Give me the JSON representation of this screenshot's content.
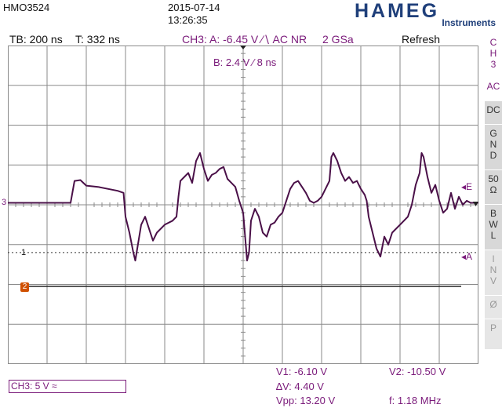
{
  "header": {
    "model": "HMO3524",
    "date": "2015-07-14",
    "time": "13:26:35",
    "brand": "HAMEG",
    "brand_sub": "Instruments"
  },
  "status": {
    "timebase": "TB: 200 ns",
    "trigger_time": "T: 332 ns",
    "channel_trigger": "CH3:  A: -6.45 V ∕∖ AC NR",
    "sample_rate": "2 GSa",
    "mode": "Refresh"
  },
  "cursor_b": "B: 2.4 V ∕ 8 ns",
  "markers": {
    "ch3_ground": "3",
    "cursor1": "1",
    "ref2": "2",
    "label_e": "◂E",
    "label_a": "◂A"
  },
  "sidebar": {
    "title_lines": [
      "C",
      "H",
      "3"
    ],
    "buttons": [
      {
        "label": "AC",
        "style": "top"
      },
      {
        "label": "DC",
        "style": "normal"
      },
      {
        "label": "G\nN\nD",
        "style": "normal"
      },
      {
        "label": "50\nΩ",
        "style": "normal"
      },
      {
        "label": "B\nW\nL",
        "style": "normal"
      },
      {
        "label": "I\nN\nV",
        "style": "dim"
      },
      {
        "label": "Ø",
        "style": "dim"
      },
      {
        "label": "P",
        "style": "dim"
      }
    ]
  },
  "footer": {
    "ch3_scale": "CH3: 5 V ≈",
    "v1": "V1: -6.10 V",
    "v2": "V2: -10.50 V",
    "dv": "∆V: 4.40 V",
    "vpp": "Vpp: 13.20 V",
    "freq": "f: 1.18 MHz"
  },
  "colors": {
    "grid": "#8a8a8a",
    "trace": "#4a1048",
    "accent": "#7a1a7a",
    "ref2": "#d05000"
  },
  "chart_data": {
    "type": "line",
    "divisions_x": 12,
    "divisions_y": 8,
    "x_unit_per_div": "200 ns",
    "y_unit_per_div": "5 V",
    "x_range": [
      0,
      12
    ],
    "y_range": [
      -4,
      4
    ],
    "ch3_trace": [
      [
        0,
        0.05
      ],
      [
        1.55,
        0.05
      ],
      [
        1.6,
        0.05
      ],
      [
        1.7,
        0.6
      ],
      [
        1.85,
        0.62
      ],
      [
        2.0,
        0.48
      ],
      [
        2.3,
        0.45
      ],
      [
        2.8,
        0.35
      ],
      [
        2.95,
        0.3
      ],
      [
        3.0,
        -0.3
      ],
      [
        3.1,
        -0.7
      ],
      [
        3.2,
        -1.2
      ],
      [
        3.25,
        -1.4
      ],
      [
        3.3,
        -1.1
      ],
      [
        3.4,
        -0.5
      ],
      [
        3.5,
        -0.3
      ],
      [
        3.6,
        -0.6
      ],
      [
        3.7,
        -0.9
      ],
      [
        3.8,
        -0.7
      ],
      [
        4.0,
        -0.5
      ],
      [
        4.2,
        -0.4
      ],
      [
        4.3,
        -0.3
      ],
      [
        4.35,
        0.2
      ],
      [
        4.4,
        0.6
      ],
      [
        4.5,
        0.7
      ],
      [
        4.6,
        0.8
      ],
      [
        4.7,
        0.55
      ],
      [
        4.8,
        1.1
      ],
      [
        4.9,
        1.3
      ],
      [
        5.0,
        0.9
      ],
      [
        5.1,
        0.6
      ],
      [
        5.2,
        0.75
      ],
      [
        5.3,
        0.8
      ],
      [
        5.4,
        0.9
      ],
      [
        5.5,
        0.95
      ],
      [
        5.6,
        0.65
      ],
      [
        5.7,
        0.55
      ],
      [
        5.8,
        0.45
      ],
      [
        5.9,
        0.1
      ],
      [
        6.0,
        -0.2
      ],
      [
        6.05,
        -0.8
      ],
      [
        6.1,
        -1.4
      ],
      [
        6.15,
        -1.2
      ],
      [
        6.2,
        -0.4
      ],
      [
        6.3,
        -0.1
      ],
      [
        6.4,
        -0.3
      ],
      [
        6.5,
        -0.7
      ],
      [
        6.6,
        -0.8
      ],
      [
        6.7,
        -0.5
      ],
      [
        6.8,
        -0.45
      ],
      [
        6.9,
        -0.3
      ],
      [
        7.0,
        -0.2
      ],
      [
        7.1,
        0.1
      ],
      [
        7.2,
        0.4
      ],
      [
        7.3,
        0.55
      ],
      [
        7.4,
        0.6
      ],
      [
        7.5,
        0.45
      ],
      [
        7.6,
        0.3
      ],
      [
        7.7,
        0.1
      ],
      [
        7.8,
        0.05
      ],
      [
        7.9,
        0.1
      ],
      [
        8.0,
        0.2
      ],
      [
        8.1,
        0.4
      ],
      [
        8.2,
        0.6
      ],
      [
        8.25,
        1.2
      ],
      [
        8.3,
        1.3
      ],
      [
        8.4,
        1.1
      ],
      [
        8.5,
        0.8
      ],
      [
        8.6,
        0.6
      ],
      [
        8.7,
        0.7
      ],
      [
        8.8,
        0.55
      ],
      [
        8.9,
        0.6
      ],
      [
        9.0,
        0.4
      ],
      [
        9.1,
        0.25
      ],
      [
        9.15,
        0.1
      ],
      [
        9.2,
        -0.3
      ],
      [
        9.3,
        -0.7
      ],
      [
        9.4,
        -1.1
      ],
      [
        9.5,
        -1.3
      ],
      [
        9.6,
        -0.8
      ],
      [
        9.7,
        -1.0
      ],
      [
        9.8,
        -0.7
      ],
      [
        10.0,
        -0.5
      ],
      [
        10.2,
        -0.3
      ],
      [
        10.3,
        0.0
      ],
      [
        10.4,
        0.5
      ],
      [
        10.5,
        0.8
      ],
      [
        10.55,
        1.3
      ],
      [
        10.6,
        1.2
      ],
      [
        10.7,
        0.7
      ],
      [
        10.8,
        0.3
      ],
      [
        10.9,
        0.5
      ],
      [
        11.0,
        0.1
      ],
      [
        11.1,
        -0.2
      ],
      [
        11.2,
        -0.1
      ],
      [
        11.3,
        0.3
      ],
      [
        11.4,
        -0.1
      ],
      [
        11.5,
        0.2
      ],
      [
        11.6,
        0.0
      ],
      [
        11.7,
        0.1
      ],
      [
        11.8,
        0.05
      ],
      [
        12.0,
        0.05
      ]
    ],
    "ref2_level_div": -2.05,
    "cursor1_level_div": -1.2
  }
}
